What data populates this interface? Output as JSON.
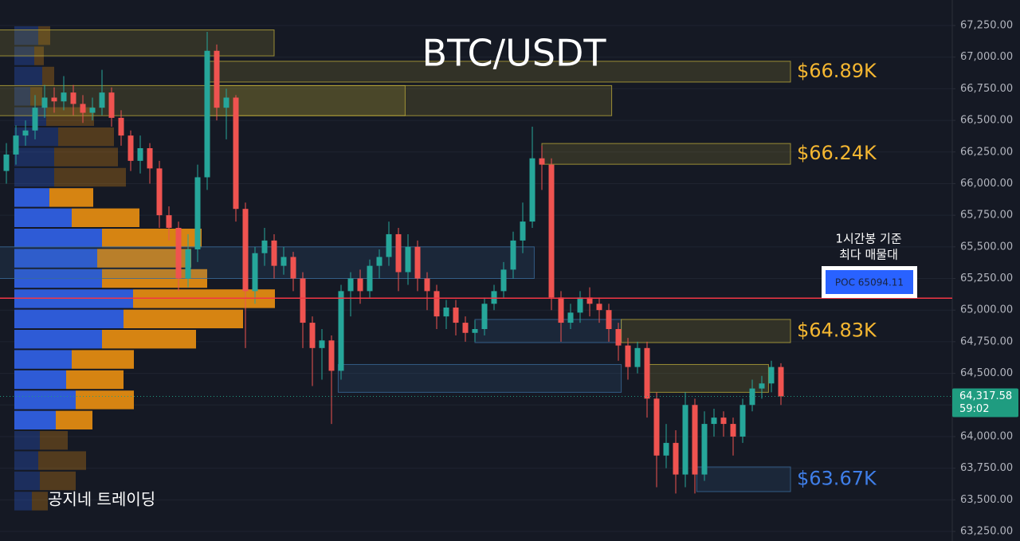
{
  "chart_data": {
    "type": "candlestick",
    "title": "BTC/USDT",
    "up_color": "#26a69a",
    "down_color": "#ef5350",
    "grid": true,
    "ylim": [
      63250,
      67250
    ],
    "yticks": [
      {
        "value": 63250,
        "label": "63,250.00"
      },
      {
        "value": 63500,
        "label": "63,500.00"
      },
      {
        "value": 63750,
        "label": "63,750.00"
      },
      {
        "value": 64000,
        "label": "64,000.00"
      },
      {
        "value": 64250,
        "label": "64,250.00"
      },
      {
        "value": 64500,
        "label": "64,500.00"
      },
      {
        "value": 64750,
        "label": "64,750.00"
      },
      {
        "value": 65000,
        "label": "65,000.00"
      },
      {
        "value": 65250,
        "label": "65,250.00"
      },
      {
        "value": 65500,
        "label": "65,500.00"
      },
      {
        "value": 65750,
        "label": "65,750.00"
      },
      {
        "value": 66000,
        "label": "66,000.00"
      },
      {
        "value": 66250,
        "label": "66,250.00"
      },
      {
        "value": 66500,
        "label": "66,500.00"
      },
      {
        "value": 66750,
        "label": "66,750.00"
      },
      {
        "value": 67000,
        "label": "67,000.00"
      },
      {
        "value": 67250,
        "label": "67,250.00"
      }
    ],
    "open": [
      66100,
      66230,
      66380,
      66420,
      66600,
      66680,
      66650,
      66720,
      66630,
      66560,
      66600,
      66720,
      66520,
      66380,
      66180,
      66280,
      66120,
      65750,
      65650,
      65250,
      65480,
      66050,
      67050,
      66600,
      66680,
      65800,
      65150,
      65450,
      65550,
      65350,
      65420,
      65250,
      64900,
      64700,
      64760,
      64520,
      65150,
      65250,
      65150,
      65350,
      65420,
      65600,
      65300,
      65500,
      65250,
      65150,
      64950,
      65020,
      64900,
      64820,
      64850,
      65050,
      65150,
      65320,
      65550,
      65700,
      66200,
      66150,
      65100,
      64900,
      64980,
      65100,
      65050,
      65000,
      64850,
      64720,
      64550,
      64700,
      64300,
      63850,
      63950,
      63700,
      64250,
      63700,
      64100,
      64150,
      64100,
      64000,
      64250,
      64380,
      64420,
      64550
    ],
    "high": [
      66320,
      66460,
      66500,
      66700,
      66780,
      66760,
      66850,
      66780,
      66700,
      66680,
      66900,
      66760,
      66580,
      66420,
      66380,
      66320,
      66180,
      65820,
      65700,
      65600,
      66150,
      67200,
      67100,
      66750,
      66700,
      65850,
      65500,
      65650,
      65600,
      65500,
      65460,
      65300,
      64950,
      64850,
      64800,
      65200,
      65300,
      65320,
      65400,
      65480,
      65700,
      65650,
      65600,
      65550,
      65300,
      65200,
      65080,
      65080,
      64950,
      64920,
      65100,
      65200,
      65380,
      65620,
      65850,
      66450,
      66300,
      66200,
      65150,
      65050,
      65150,
      65180,
      65100,
      65050,
      64900,
      64780,
      64750,
      64750,
      64350,
      64100,
      64050,
      64350,
      64300,
      64200,
      64220,
      64200,
      64150,
      64300,
      64450,
      64480,
      64600,
      64580
    ],
    "low": [
      66000,
      66150,
      66300,
      66350,
      66520,
      66560,
      66580,
      66540,
      66480,
      66500,
      66540,
      66450,
      66300,
      66100,
      66080,
      66000,
      65650,
      65550,
      65150,
      65180,
      65380,
      65950,
      66500,
      66350,
      65700,
      64700,
      65050,
      65350,
      65250,
      65280,
      65150,
      64700,
      64400,
      64450,
      64100,
      64450,
      64950,
      65050,
      65100,
      65250,
      65350,
      65150,
      65200,
      65150,
      65000,
      64850,
      64850,
      64800,
      64750,
      64750,
      64800,
      65000,
      65100,
      65250,
      65450,
      65650,
      65950,
      65000,
      64750,
      64850,
      64900,
      64950,
      64900,
      64750,
      64600,
      64450,
      64500,
      64150,
      63600,
      63750,
      63550,
      63600,
      63550,
      63650,
      64000,
      64000,
      63850,
      63950,
      64200,
      64300,
      64350,
      64250
    ],
    "close": [
      66230,
      66380,
      66420,
      66600,
      66680,
      66650,
      66720,
      66630,
      66560,
      66600,
      66720,
      66520,
      66380,
      66180,
      66280,
      66120,
      65750,
      65650,
      65250,
      65480,
      66050,
      67050,
      66600,
      66680,
      65800,
      65150,
      65450,
      65550,
      65350,
      65420,
      65250,
      64900,
      64700,
      64760,
      64520,
      65150,
      65250,
      65150,
      65350,
      65420,
      65600,
      65300,
      65500,
      65250,
      65150,
      64950,
      65020,
      64900,
      64820,
      64850,
      65050,
      65150,
      65320,
      65550,
      65700,
      66200,
      66150,
      65100,
      64900,
      64980,
      65100,
      65050,
      65000,
      64850,
      64720,
      64550,
      64700,
      64300,
      63850,
      63950,
      63700,
      64250,
      63700,
      64100,
      64150,
      64100,
      64000,
      64250,
      64380,
      64420,
      64550,
      64317.58
    ],
    "volume_profile": {
      "levels": [
        67170,
        67010,
        66850,
        66690,
        66530,
        66370,
        66210,
        66050,
        65890,
        65730,
        65570,
        65410,
        65250,
        65090,
        64930,
        64770,
        64610,
        64450,
        64290,
        64130,
        63970,
        63810,
        63650,
        63490
      ],
      "buy": [
        30,
        25,
        35,
        20,
        40,
        55,
        50,
        50,
        44,
        72,
        110,
        104,
        110,
        149,
        137,
        110,
        72,
        65,
        77,
        52,
        32,
        30,
        32,
        22
      ],
      "sell": [
        15,
        12,
        15,
        15,
        60,
        70,
        80,
        90,
        55,
        85,
        125,
        118,
        132,
        178,
        150,
        118,
        78,
        72,
        73,
        46,
        35,
        60,
        45,
        20
      ],
      "buy_color": "#2f5fe0",
      "sell_color": "#e08a12",
      "value_area": [
        64050,
        65970
      ]
    },
    "zones": [
      {
        "low": 67010,
        "high": 67215,
        "x0": -1,
        "x1": 28,
        "color": "#b8a63a"
      },
      {
        "low": 66803,
        "high": 66967,
        "x0": 21,
        "x1": 82,
        "color": "#b8a63a",
        "label": "$66.89K",
        "label_color": "#f5b731"
      },
      {
        "low": 66537,
        "high": 66775,
        "x0": -1,
        "x1": 41.7,
        "color": "#b8a63a"
      },
      {
        "low": 66537,
        "high": 66775,
        "x0": 21,
        "x1": 63.3,
        "color": "#b8a63a"
      },
      {
        "low": 66153,
        "high": 66317,
        "x0": 56,
        "x1": 82,
        "color": "#b8a63a",
        "label": "$66.24K",
        "label_color": "#f5b731"
      },
      {
        "low": 65250,
        "high": 65500,
        "x0": -1,
        "x1": 55.2,
        "color": "#3a6a9a"
      },
      {
        "low": 64743,
        "high": 64926,
        "x0": 49,
        "x1": 64.3,
        "color": "#3a6a9a"
      },
      {
        "low": 64743,
        "high": 64926,
        "x0": 64.3,
        "x1": 82,
        "color": "#b8a63a",
        "label": "$64.83K",
        "label_color": "#f5b731"
      },
      {
        "low": 64350,
        "high": 64570,
        "x0": 34.7,
        "x1": 64.3,
        "color": "#3a6a9a"
      },
      {
        "low": 64350,
        "high": 64570,
        "x0": 66.8,
        "x1": 79.7,
        "color": "#b8a63a"
      },
      {
        "low": 63565,
        "high": 63760,
        "x0": 72.2,
        "x1": 82,
        "color": "#3a6a9a",
        "label": "$63.67K",
        "label_color": "#3f7ee8"
      }
    ],
    "poc": {
      "value": 65094.11,
      "label": "POC  65094.11",
      "color": "#f23645"
    },
    "poc_note": [
      "1시간봉 기준",
      "최다 매물대"
    ],
    "current_price": {
      "value": 64317.58,
      "label": "64,317.58",
      "countdown": "59:02",
      "color": "#1f9c80"
    },
    "watermark": "공지네 트레이딩"
  }
}
